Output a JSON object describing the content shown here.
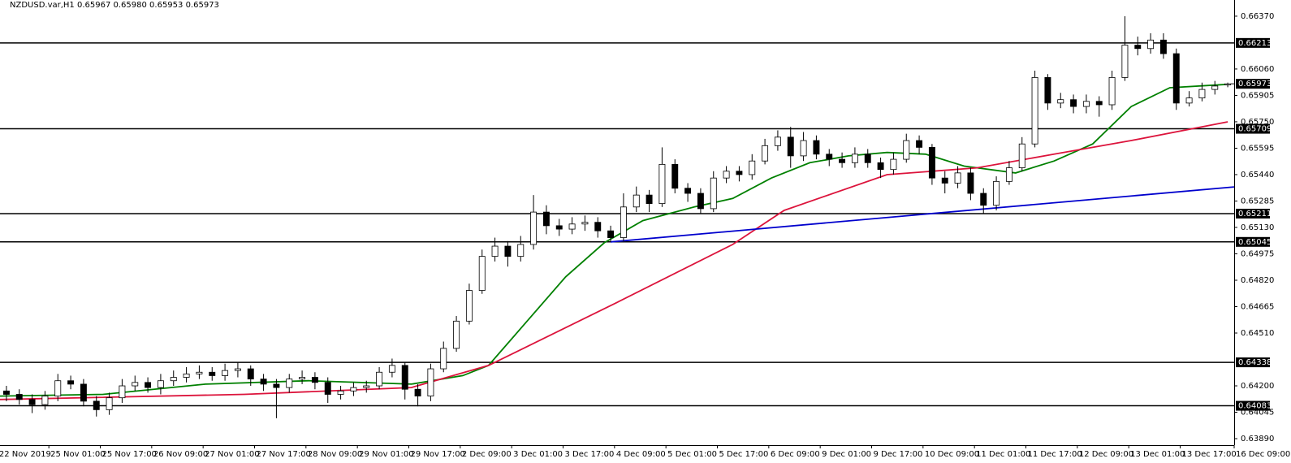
{
  "chart_data": {
    "type": "candlestick",
    "title": "NZDUSD.var,H1  0.65967 0.65980 0.65953 0.65973",
    "xlim": [
      0,
      96
    ],
    "ylim": [
      0.63852,
      0.66465
    ],
    "up_color": "#ffffff",
    "down_color": "#000000",
    "outline_color": "#000000",
    "xticks": [
      {
        "value": -0.2,
        "label": "22 Nov 2019"
      },
      {
        "value": 3.8,
        "label": "25 Nov 01:00"
      },
      {
        "value": 7.8,
        "label": "25 Nov 17:00"
      },
      {
        "value": 11.8,
        "label": "26 Nov 09:00"
      },
      {
        "value": 15.8,
        "label": "27 Nov 01:00"
      },
      {
        "value": 19.8,
        "label": "27 Nov 17:00"
      },
      {
        "value": 23.8,
        "label": "28 Nov 09:00"
      },
      {
        "value": 27.8,
        "label": "29 Nov 01:00"
      },
      {
        "value": 31.8,
        "label": "29 Nov 17:00"
      },
      {
        "value": 35.8,
        "label": "2 Dec 09:00"
      },
      {
        "value": 39.8,
        "label": "3 Dec 01:00"
      },
      {
        "value": 43.8,
        "label": "3 Dec 17:00"
      },
      {
        "value": 47.8,
        "label": "4 Dec 09:00"
      },
      {
        "value": 51.8,
        "label": "5 Dec 01:00"
      },
      {
        "value": 55.8,
        "label": "5 Dec 17:00"
      },
      {
        "value": 59.8,
        "label": "6 Dec 09:00"
      },
      {
        "value": 63.8,
        "label": "9 Dec 01:00"
      },
      {
        "value": 67.8,
        "label": "9 Dec 17:00"
      },
      {
        "value": 71.8,
        "label": "10 Dec 09:00"
      },
      {
        "value": 75.8,
        "label": "11 Dec 01:00"
      },
      {
        "value": 79.8,
        "label": "11 Dec 17:00"
      },
      {
        "value": 83.8,
        "label": "12 Dec 09:00"
      },
      {
        "value": 87.8,
        "label": "13 Dec 01:00"
      },
      {
        "value": 91.8,
        "label": "13 Dec 17:00"
      },
      {
        "value": 96.0,
        "label": "16 Dec 09:00"
      }
    ],
    "yticks": [
      {
        "value": 0.6637,
        "label": "0.66370"
      },
      {
        "value": 0.6606,
        "label": "0.66060"
      },
      0.65905,
      {
        "value": 0.6575,
        "label": "0.65750"
      },
      0.65595,
      {
        "value": 0.6544,
        "label": "0.65440"
      },
      0.65285,
      {
        "value": 0.6513,
        "label": "0.65130"
      },
      0.64975,
      {
        "value": 0.6482,
        "label": "0.64820"
      },
      0.64665,
      {
        "value": 0.6451,
        "label": "0.64510"
      },
      {
        "value": 0.642,
        "label": "0.64200"
      },
      0.64045,
      {
        "value": 0.6389,
        "label": "0.63890"
      }
    ],
    "open": [
      0.6417,
      0.6415,
      0.6412,
      0.6409,
      0.6414,
      0.6423,
      0.6421,
      0.6411,
      0.6406,
      0.6413,
      0.642,
      0.6422,
      0.6419,
      0.6423,
      0.6425,
      0.6427,
      0.6428,
      0.6426,
      0.6429,
      0.643,
      0.6424,
      0.6421,
      0.6419,
      0.6424,
      0.6425,
      0.6422,
      0.6415,
      0.6417,
      0.6419,
      0.642,
      0.6428,
      0.6432,
      0.6418,
      0.6414,
      0.643,
      0.6442,
      0.6458,
      0.6476,
      0.6496,
      0.6502,
      0.6496,
      0.6503,
      0.6522,
      0.6514,
      0.6512,
      0.6515,
      0.6516,
      0.6511,
      0.6507,
      0.6525,
      0.6532,
      0.6527,
      0.655,
      0.6536,
      0.6533,
      0.6524,
      0.6542,
      0.6546,
      0.6544,
      0.6552,
      0.6561,
      0.6566,
      0.6555,
      0.6564,
      0.6556,
      0.6553,
      0.6551,
      0.6556,
      0.6551,
      0.6547,
      0.6553,
      0.6564,
      0.656,
      0.6542,
      0.6539,
      0.6545,
      0.6533,
      0.6526,
      0.654,
      0.6548,
      0.6562,
      0.6601,
      0.6586,
      0.6588,
      0.6584,
      0.6587,
      0.6585,
      0.6601,
      0.662,
      0.6618,
      0.6623,
      0.6615,
      0.6586,
      0.6589,
      0.6594,
      0.65967
    ],
    "high": [
      0.642,
      0.6418,
      0.6415,
      0.6417,
      0.6427,
      0.6426,
      0.6424,
      0.6414,
      0.6416,
      0.6424,
      0.6426,
      0.6425,
      0.6427,
      0.6429,
      0.6431,
      0.6432,
      0.6431,
      0.6433,
      0.6434,
      0.6432,
      0.6427,
      0.6424,
      0.6427,
      0.6429,
      0.6428,
      0.6425,
      0.642,
      0.6422,
      0.6423,
      0.6431,
      0.6436,
      0.6434,
      0.6421,
      0.6433,
      0.6446,
      0.6461,
      0.648,
      0.65,
      0.6507,
      0.6505,
      0.6508,
      0.6532,
      0.6526,
      0.6518,
      0.6519,
      0.652,
      0.6519,
      0.6514,
      0.6533,
      0.6537,
      0.6535,
      0.656,
      0.6553,
      0.6539,
      0.6536,
      0.6546,
      0.6549,
      0.6549,
      0.6556,
      0.6565,
      0.657,
      0.6572,
      0.6569,
      0.6567,
      0.6559,
      0.6557,
      0.656,
      0.6559,
      0.6554,
      0.6557,
      0.6568,
      0.6567,
      0.6562,
      0.6546,
      0.6549,
      0.6548,
      0.6536,
      0.6543,
      0.6552,
      0.6566,
      0.6605,
      0.6603,
      0.6592,
      0.6591,
      0.6591,
      0.659,
      0.6605,
      0.6637,
      0.6625,
      0.6627,
      0.6627,
      0.6618,
      0.6593,
      0.6598,
      0.6599,
      0.6598
    ],
    "low": [
      0.6411,
      0.6409,
      0.6404,
      0.6406,
      0.6411,
      0.6418,
      0.6408,
      0.6402,
      0.6403,
      0.641,
      0.6417,
      0.6416,
      0.6415,
      0.642,
      0.6422,
      0.6424,
      0.6423,
      0.6423,
      0.6425,
      0.642,
      0.6417,
      0.6401,
      0.6416,
      0.6421,
      0.6418,
      0.641,
      0.6412,
      0.6414,
      0.6416,
      0.6418,
      0.6425,
      0.6412,
      0.6408,
      0.6411,
      0.6428,
      0.644,
      0.6456,
      0.6474,
      0.6493,
      0.649,
      0.6493,
      0.65,
      0.6509,
      0.6508,
      0.6509,
      0.6511,
      0.6507,
      0.65045,
      0.6505,
      0.6522,
      0.6522,
      0.6525,
      0.6533,
      0.6528,
      0.6521,
      0.6522,
      0.6539,
      0.654,
      0.6541,
      0.655,
      0.6558,
      0.6548,
      0.6552,
      0.6553,
      0.6549,
      0.6548,
      0.6548,
      0.6548,
      0.6542,
      0.6544,
      0.6551,
      0.6556,
      0.6538,
      0.6533,
      0.6536,
      0.6529,
      0.6521,
      0.6523,
      0.6538,
      0.6546,
      0.656,
      0.6582,
      0.6583,
      0.658,
      0.658,
      0.6578,
      0.6582,
      0.6599,
      0.6614,
      0.6615,
      0.6612,
      0.6582,
      0.6584,
      0.6587,
      0.6591,
      0.65953
    ],
    "close": [
      0.6415,
      0.6412,
      0.6409,
      0.6414,
      0.6423,
      0.6421,
      0.6411,
      0.6406,
      0.6413,
      0.642,
      0.6422,
      0.6419,
      0.6423,
      0.6425,
      0.6427,
      0.6428,
      0.6426,
      0.6429,
      0.643,
      0.6424,
      0.6421,
      0.6419,
      0.6424,
      0.6425,
      0.6422,
      0.6415,
      0.6417,
      0.6419,
      0.642,
      0.6428,
      0.6432,
      0.6418,
      0.6414,
      0.643,
      0.6442,
      0.6458,
      0.6476,
      0.6496,
      0.6502,
      0.6496,
      0.6503,
      0.6522,
      0.6514,
      0.6512,
      0.6515,
      0.6516,
      0.6511,
      0.6507,
      0.6525,
      0.6532,
      0.6527,
      0.655,
      0.6536,
      0.6533,
      0.6524,
      0.6542,
      0.6546,
      0.6544,
      0.6552,
      0.6561,
      0.6566,
      0.6555,
      0.6564,
      0.6556,
      0.6553,
      0.6551,
      0.6556,
      0.6551,
      0.6547,
      0.6553,
      0.6564,
      0.656,
      0.6542,
      0.6539,
      0.6545,
      0.6533,
      0.6526,
      0.654,
      0.6548,
      0.6562,
      0.6601,
      0.6586,
      0.6588,
      0.6584,
      0.6587,
      0.6585,
      0.6601,
      0.662,
      0.6618,
      0.6623,
      0.6615,
      0.6586,
      0.6589,
      0.6594,
      0.6596,
      0.65973
    ],
    "series": [
      {
        "color": "#008000",
        "x": [
          0,
          8,
          16,
          24,
          32,
          36,
          38,
          41,
          44,
          47,
          50,
          54,
          57,
          60,
          63,
          66,
          69,
          72,
          75,
          79,
          82,
          85,
          88,
          91,
          95.5
        ],
        "values": [
          0.6414,
          0.6415,
          0.6421,
          0.6423,
          0.6421,
          0.6426,
          0.6432,
          0.6458,
          0.6484,
          0.6504,
          0.6517,
          0.6525,
          0.653,
          0.6542,
          0.6551,
          0.6555,
          0.6557,
          0.6556,
          0.6549,
          0.6545,
          0.6552,
          0.6562,
          0.6584,
          0.6595,
          0.6597
        ]
      },
      {
        "color": "#dc143c",
        "x": [
          0,
          19,
          32,
          38,
          48,
          57,
          61,
          69,
          76,
          82,
          88,
          95.5
        ],
        "values": [
          0.6412,
          0.6415,
          0.6419,
          0.6432,
          0.6469,
          0.6503,
          0.6523,
          0.6544,
          0.6548,
          0.6556,
          0.6564,
          0.6575
        ]
      },
      {
        "color": "#0000cd",
        "x": [
          47.5,
          96
        ],
        "values": [
          0.65045,
          0.65368
        ]
      }
    ],
    "levels": [
      0.66213,
      0.65709,
      0.65211,
      0.65045,
      0.64338,
      0.64083
    ],
    "current_price": 0.65973
  }
}
